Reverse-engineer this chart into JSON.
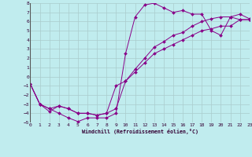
{
  "xlabel": "Windchill (Refroidissement éolien,°C)",
  "bg_color": "#c0ecee",
  "line_color": "#880088",
  "grid_color": "#aacccc",
  "xmin": 0,
  "xmax": 23,
  "ymin": -5,
  "ymax": 8,
  "xticks": [
    0,
    1,
    2,
    3,
    4,
    5,
    6,
    7,
    8,
    9,
    10,
    11,
    12,
    13,
    14,
    15,
    16,
    17,
    18,
    19,
    20,
    21,
    22,
    23
  ],
  "yticks": [
    -5,
    -4,
    -3,
    -2,
    -1,
    0,
    1,
    2,
    3,
    4,
    5,
    6,
    7,
    8
  ],
  "line1_x": [
    0,
    1,
    2,
    3,
    4,
    5,
    6,
    7,
    8,
    9,
    10,
    11,
    12,
    13,
    14,
    15,
    16,
    17,
    18,
    19,
    20,
    21,
    22,
    23
  ],
  "line1_y": [
    -0.8,
    -3.0,
    -3.5,
    -4.0,
    -4.5,
    -4.9,
    -4.5,
    -4.5,
    -4.5,
    -4.0,
    2.5,
    6.5,
    7.8,
    8.0,
    7.5,
    7.0,
    7.2,
    6.8,
    6.8,
    5.0,
    4.5,
    6.5,
    6.2,
    6.2
  ],
  "line2_x": [
    0,
    1,
    2,
    3,
    4,
    5,
    6,
    7,
    8,
    9,
    10,
    11,
    12,
    13,
    14,
    15,
    16,
    17,
    18,
    19,
    20,
    21,
    22,
    23
  ],
  "line2_y": [
    -0.8,
    -3.0,
    -3.5,
    -3.2,
    -3.5,
    -4.0,
    -4.0,
    -4.2,
    -4.0,
    -3.5,
    -0.5,
    0.5,
    1.5,
    2.5,
    3.0,
    3.5,
    4.0,
    4.5,
    5.0,
    5.2,
    5.5,
    5.5,
    6.2,
    6.2
  ],
  "line3_x": [
    0,
    1,
    2,
    3,
    4,
    5,
    6,
    7,
    8,
    9,
    10,
    11,
    12,
    13,
    14,
    15,
    16,
    17,
    18,
    19,
    20,
    21,
    22,
    23
  ],
  "line3_y": [
    -0.8,
    -3.0,
    -3.8,
    -3.2,
    -3.5,
    -4.0,
    -4.0,
    -4.2,
    -4.0,
    -1.0,
    -0.5,
    0.8,
    2.0,
    3.2,
    3.8,
    4.5,
    4.8,
    5.5,
    6.0,
    6.3,
    6.5,
    6.5,
    6.8,
    6.3
  ]
}
